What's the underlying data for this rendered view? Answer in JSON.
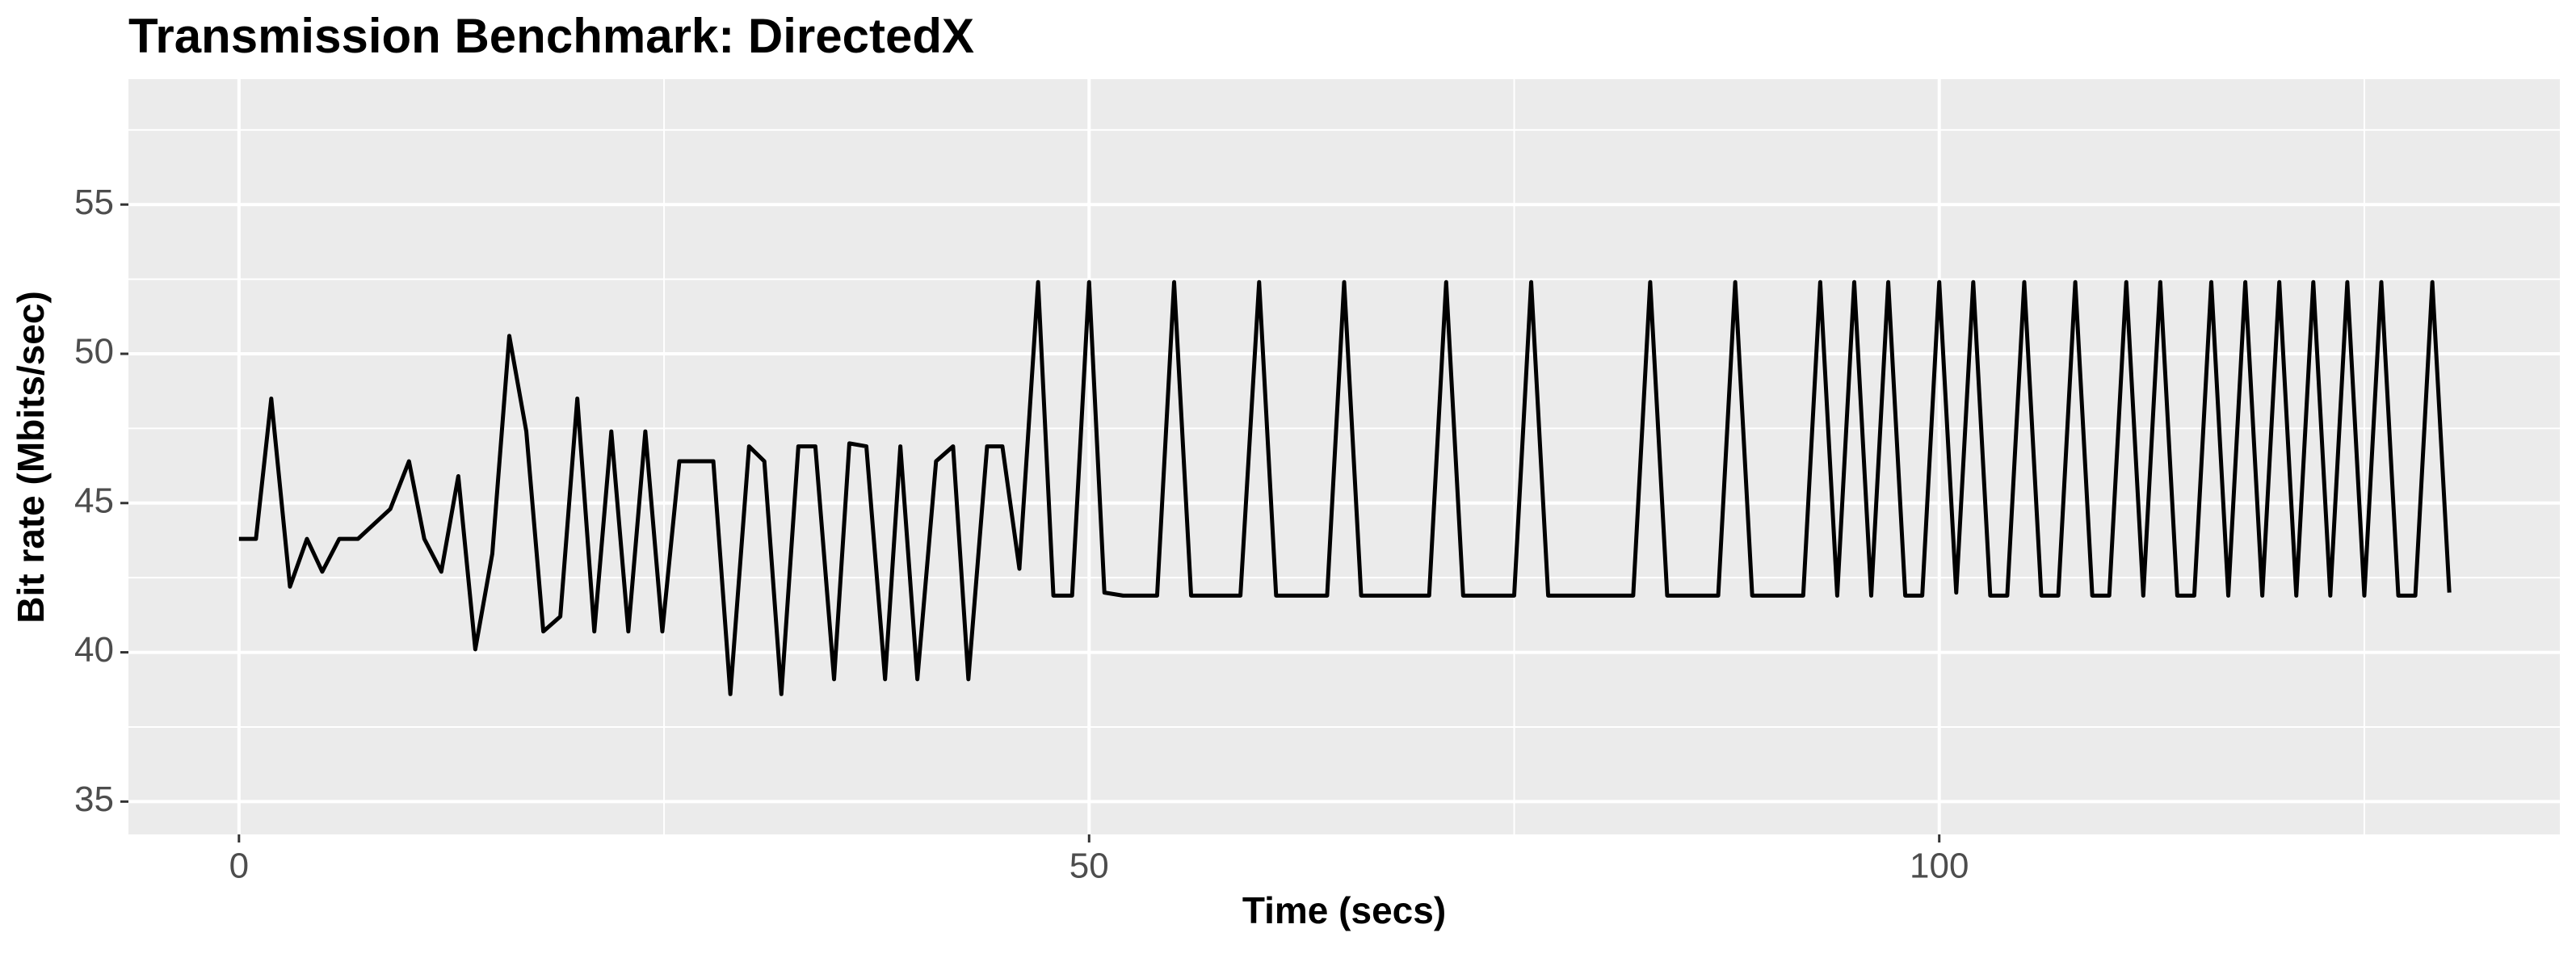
{
  "chart_data": {
    "type": "line",
    "title": "Transmission Benchmark: DirectedX",
    "x_label": "Time (secs)",
    "y_label": "Bit rate (Mbits/sec)",
    "x": [
      0,
      1,
      1.9,
      3,
      4,
      4.9,
      5.9,
      7,
      8.9,
      10,
      10.9,
      11.9,
      12.9,
      13.9,
      14.9,
      15.9,
      16.9,
      17.9,
      18.9,
      19.9,
      20.9,
      21.9,
      22.9,
      23.9,
      24.9,
      25.9,
      27.9,
      28.9,
      30,
      30.9,
      31.9,
      32.9,
      33.9,
      35,
      35.9,
      36.9,
      38,
      38.9,
      39.9,
      41,
      42,
      42.9,
      44,
      44.9,
      45.9,
      47,
      47.9,
      49,
      50,
      50.9,
      52,
      54,
      55,
      56,
      58.9,
      60,
      61,
      64,
      65,
      66,
      70,
      71,
      72,
      75,
      76,
      77,
      82,
      83,
      84,
      87,
      88,
      89,
      92,
      93,
      94,
      95,
      96,
      97,
      98,
      99,
      100,
      101,
      102,
      103,
      104,
      105,
      106,
      107,
      108,
      109,
      110,
      111,
      112,
      113,
      114,
      115,
      116,
      117,
      118,
      119,
      120,
      121,
      122,
      123,
      124,
      125,
      126,
      127,
      128,
      129,
      130
    ],
    "series": [
      {
        "name": "Bit rate",
        "color": "#000000",
        "values": [
          43.8,
          43.8,
          48.5,
          42.2,
          43.8,
          42.7,
          43.8,
          43.8,
          44.8,
          46.4,
          43.8,
          42.7,
          45.9,
          40.1,
          43.3,
          50.6,
          47.4,
          40.7,
          41.2,
          48.5,
          40.7,
          47.4,
          40.7,
          47.4,
          40.7,
          46.4,
          46.4,
          38.6,
          46.9,
          46.4,
          38.6,
          46.9,
          46.9,
          39.1,
          47.0,
          46.9,
          39.1,
          46.9,
          39.1,
          46.4,
          46.9,
          39.1,
          46.9,
          46.9,
          42.8,
          52.4,
          41.9,
          41.9,
          52.4,
          42.0,
          41.9,
          41.9,
          52.4,
          41.9,
          41.9,
          52.4,
          41.9,
          41.9,
          52.4,
          41.9,
          41.9,
          52.4,
          41.9,
          41.9,
          52.4,
          41.9,
          41.9,
          52.4,
          41.9,
          41.9,
          52.4,
          41.9,
          41.9,
          52.4,
          41.9,
          52.4,
          41.9,
          52.4,
          41.9,
          41.9,
          52.4,
          42.0,
          52.4,
          41.9,
          41.9,
          52.4,
          41.9,
          41.9,
          52.4,
          41.9,
          41.9,
          52.4,
          41.9,
          52.4,
          41.9,
          41.9,
          52.4,
          41.9,
          52.4,
          41.9,
          52.4,
          41.9,
          52.4,
          41.9,
          52.4,
          41.9,
          52.4,
          41.9,
          41.9,
          52.4,
          42.0
        ]
      }
    ],
    "xlim": [
      -6.5,
      136.5
    ],
    "xticks": [
      0,
      50,
      100
    ],
    "ylim": [
      33.9,
      59.2
    ],
    "yticks": [
      35,
      40,
      45,
      50,
      55
    ],
    "grid": true
  }
}
